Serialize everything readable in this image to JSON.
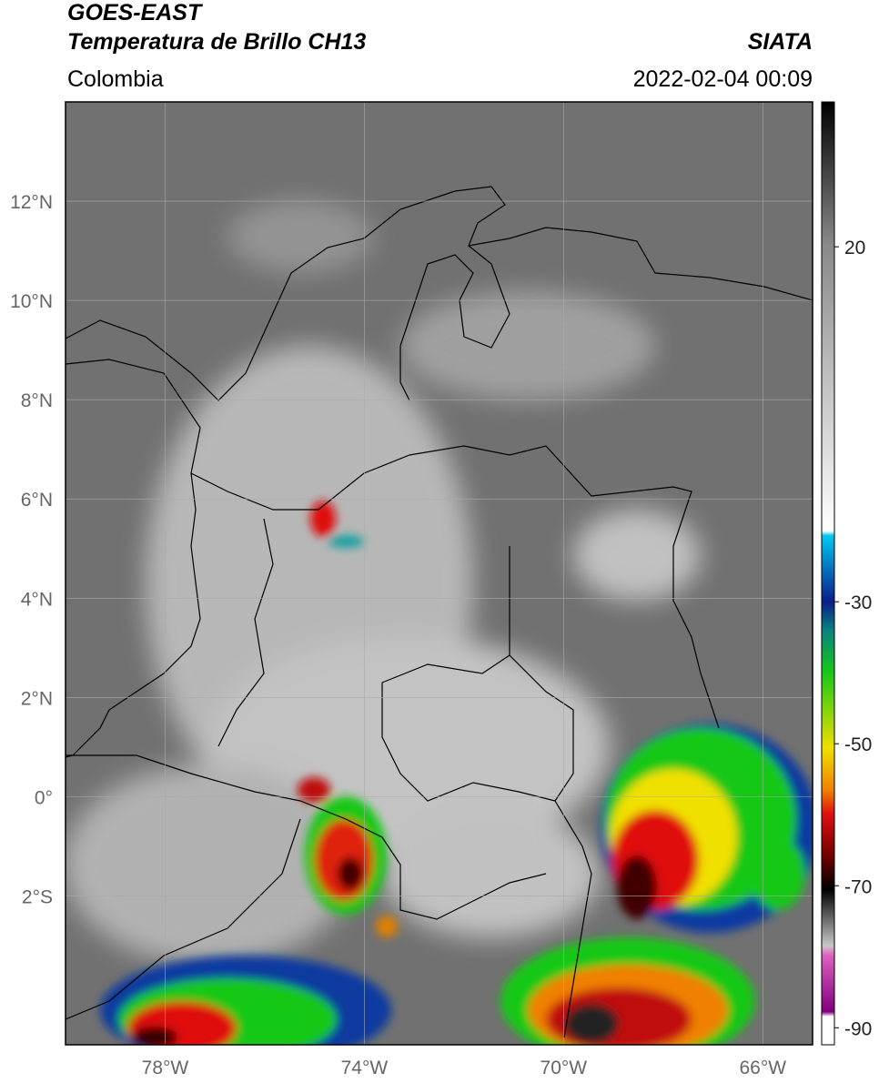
{
  "header": {
    "title": "GOES-EAST",
    "subtitle": "Temperatura de Brillo CH13",
    "agency": "SIATA",
    "region": "Colombia",
    "datetime": "2022-02-04 00:09"
  },
  "map": {
    "lon_range": [
      -80,
      -65
    ],
    "lat_range": [
      -5,
      14
    ],
    "lat_ticks": [
      {
        "value": 12,
        "label": "12°N"
      },
      {
        "value": 10,
        "label": "10°N"
      },
      {
        "value": 8,
        "label": "8°N"
      },
      {
        "value": 6,
        "label": "6°N"
      },
      {
        "value": 4,
        "label": "4°N"
      },
      {
        "value": 2,
        "label": "2°N"
      },
      {
        "value": 0,
        "label": "0°"
      },
      {
        "value": -2,
        "label": "2°S"
      }
    ],
    "lon_ticks": [
      {
        "value": -78,
        "label": "78°W"
      },
      {
        "value": -74,
        "label": "74°W"
      },
      {
        "value": -70,
        "label": "70°W"
      },
      {
        "value": -66,
        "label": "66°W"
      }
    ]
  },
  "colorbar": {
    "range": [
      40.4,
      -92.4
    ],
    "ticks": [
      20,
      -30,
      -50,
      -70,
      -90
    ]
  }
}
